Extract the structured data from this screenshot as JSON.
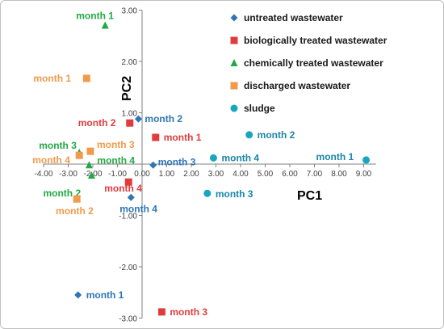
{
  "chart_data": {
    "type": "scatter",
    "title": "",
    "xlabel": "PC1",
    "ylabel": "PC2",
    "xlim": [
      -4.0,
      9.5
    ],
    "ylim": [
      -3.0,
      3.0
    ],
    "x_ticks": [
      -4,
      -3,
      -2,
      -1,
      0,
      1,
      2,
      3,
      4,
      5,
      6,
      7,
      8,
      9
    ],
    "x_tick_labels": [
      "-4.00",
      "-3.00",
      "-2.00",
      "-1.00",
      "0.00",
      "1.00",
      "2.00",
      "3.00",
      "4.00",
      "5.00",
      "6.00",
      "7.00",
      "8.00",
      "9.00"
    ],
    "y_ticks": [
      -3,
      -2,
      -1,
      0,
      1,
      2,
      3
    ],
    "y_tick_labels": [
      "-3.00",
      "-2.00",
      "-1.00",
      "0.00",
      "1.00",
      "2.00",
      "3.00"
    ],
    "grid": false,
    "legend_position": "top-right",
    "series": [
      {
        "name": "untreated wastewater",
        "marker": "diamond",
        "color": "#2E75B6",
        "label_color": "#2E75B6",
        "points": [
          {
            "x": -2.6,
            "y": -2.55,
            "label": "month 1"
          },
          {
            "x": -0.15,
            "y": 0.88,
            "label": "month 2"
          },
          {
            "x": 0.45,
            "y": -0.02,
            "label": "month 3"
          },
          {
            "x": -0.45,
            "y": -0.65,
            "label": "month 4"
          }
        ]
      },
      {
        "name": "biologically treated wastewater",
        "marker": "square",
        "color": "#E03C3C",
        "label_color": "#E03C3C",
        "points": [
          {
            "x": 0.8,
            "y": -2.88,
            "label": "month 3"
          },
          {
            "x": -0.5,
            "y": 0.8,
            "label": "month 2"
          },
          {
            "x": 0.55,
            "y": 0.52,
            "label": "month 1"
          },
          {
            "x": -0.55,
            "y": -0.35,
            "label": "month 4"
          }
        ]
      },
      {
        "name": "chemically treated wastewater",
        "marker": "triangle",
        "color": "#22A844",
        "label_color": "#22A844",
        "points": [
          {
            "x": -1.5,
            "y": 2.7,
            "label": "month 1"
          },
          {
            "x": -2.55,
            "y": 0.22,
            "label": "month 3"
          },
          {
            "x": -2.15,
            "y": -0.02,
            "label": "month 4"
          },
          {
            "x": -2.05,
            "y": -0.22,
            "label": "month 2"
          }
        ]
      },
      {
        "name": "discharged wastewater",
        "marker": "square",
        "color": "#F39A4A",
        "label_color": "#F39A4A",
        "points": [
          {
            "x": -2.25,
            "y": 1.67,
            "label": "month 1"
          },
          {
            "x": -2.1,
            "y": 0.25,
            "label": "month 3"
          },
          {
            "x": -2.55,
            "y": 0.17,
            "label": "month 4"
          },
          {
            "x": -2.65,
            "y": -0.68,
            "label": "month 2"
          }
        ]
      },
      {
        "name": "sludge",
        "marker": "circle",
        "color": "#17A6C0",
        "label_color": "#1A86A8",
        "points": [
          {
            "x": 9.1,
            "y": 0.08,
            "label": "month 1"
          },
          {
            "x": 4.35,
            "y": 0.57,
            "label": "month 2"
          },
          {
            "x": 2.65,
            "y": -0.57,
            "label": "month 3"
          },
          {
            "x": 2.9,
            "y": 0.12,
            "label": "month 4"
          }
        ]
      }
    ]
  }
}
